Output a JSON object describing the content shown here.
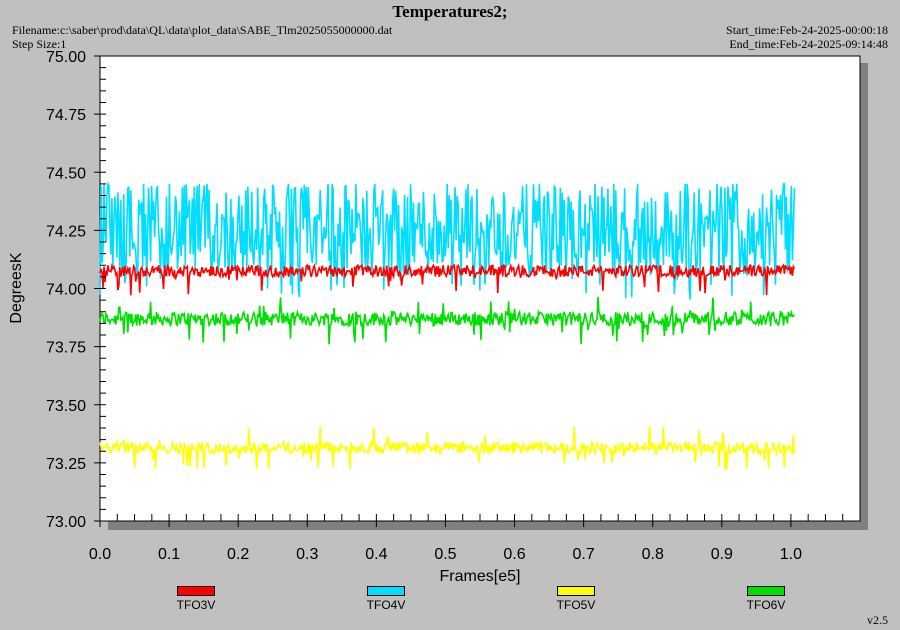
{
  "header": {
    "title": "Temperatures2;",
    "filename": "Filename:c:\\saber\\prod\\data\\QL\\data\\plot_data\\SABE_Tlm2025055000000.dat",
    "step_size": "Step Size:1",
    "start_time": "Start_time:Feb-24-2025-00:00:18",
    "end_time": "End_time:Feb-24-2025-09:14:48",
    "version": "v2.5"
  },
  "chart_data": {
    "type": "line",
    "title": "Temperatures2;",
    "xlabel": "Frames[e5]",
    "ylabel": "DegreesK",
    "xlim": [
      0.0,
      1.1
    ],
    "ylim": [
      73.0,
      75.0
    ],
    "x_ticks": [
      "0.0",
      "0.1",
      "0.2",
      "0.3",
      "0.4",
      "0.5",
      "0.6",
      "0.7",
      "0.8",
      "0.9",
      "1.0"
    ],
    "y_ticks": [
      "73.00",
      "73.25",
      "73.50",
      "73.75",
      "74.00",
      "74.25",
      "74.50",
      "74.75",
      "75.00"
    ],
    "x_end": 1.005,
    "legend_position": "bottom",
    "series": [
      {
        "name": "TFO3V",
        "color": "#ff0000",
        "band": [
          74.05,
          74.1
        ],
        "min": 73.97,
        "max": 74.1
      },
      {
        "name": "TFO4V",
        "color": "#00ddff",
        "band": [
          74.05,
          74.45
        ],
        "min": 73.95,
        "max": 74.45
      },
      {
        "name": "TFO5V",
        "color": "#ffff00",
        "band": [
          73.29,
          73.34
        ],
        "min": 73.22,
        "max": 73.41
      },
      {
        "name": "TFO6V",
        "color": "#00e000",
        "band": [
          73.84,
          73.9
        ],
        "min": 73.76,
        "max": 73.97
      }
    ]
  }
}
